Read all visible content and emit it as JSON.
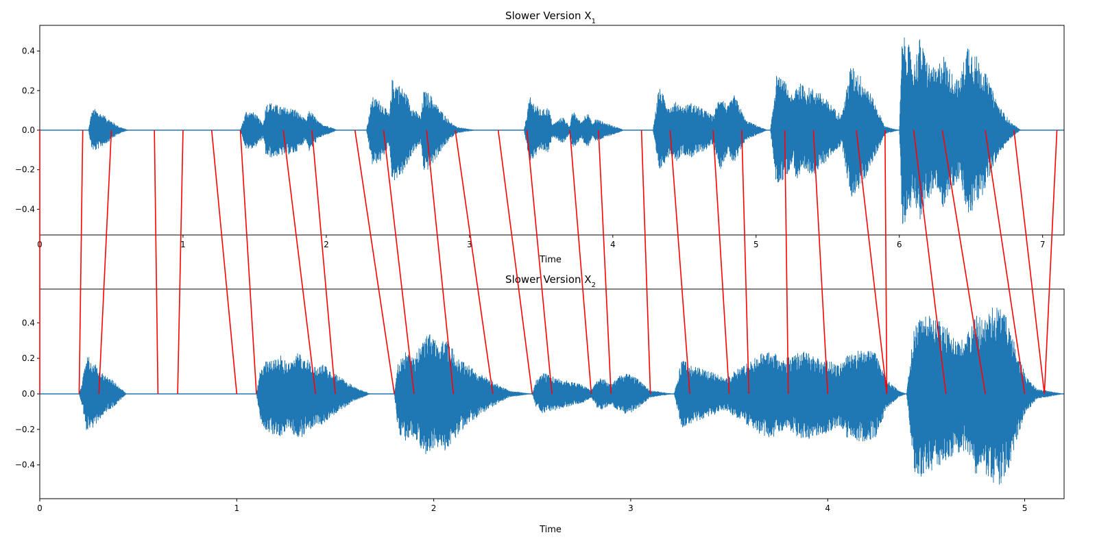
{
  "chart_data": [
    {
      "type": "line",
      "title": "Slower Version X",
      "title_subscript": "1",
      "xlabel": "Time",
      "ylabel": "",
      "xlim": [
        0,
        7.15
      ],
      "ylim": [
        -0.53,
        0.53
      ],
      "xticks": [
        0,
        1,
        2,
        3,
        4,
        5,
        6,
        7
      ],
      "yticks": [
        -0.4,
        -0.2,
        0.0,
        0.2,
        0.4
      ],
      "xtick_labels": [
        "0",
        "1",
        "2",
        "3",
        "4",
        "5",
        "6",
        "7"
      ],
      "ytick_labels": [
        "−0.4",
        "−0.2",
        "0.0",
        "0.2",
        "0.4"
      ],
      "waveform_color": "#1f77b4",
      "envelope": {
        "x": [
          0,
          0.34,
          0.36,
          0.38,
          0.42,
          0.48,
          0.55,
          0.62,
          1.4,
          1.44,
          1.5,
          1.56,
          1.58,
          1.62,
          1.68,
          1.78,
          1.86,
          1.88,
          1.9,
          1.95,
          2.05,
          2.08,
          2.28,
          2.32,
          2.38,
          2.44,
          2.46,
          2.5,
          2.55,
          2.6,
          2.66,
          2.68,
          2.72,
          2.78,
          2.86,
          2.9,
          2.96,
          3.05,
          3.38,
          3.42,
          3.5,
          3.55,
          3.58,
          3.65,
          3.7,
          3.72,
          3.78,
          3.82,
          3.86,
          3.88,
          3.94,
          4.05,
          4.08,
          4.28,
          4.32,
          4.4,
          4.45,
          4.48,
          4.55,
          4.65,
          4.7,
          4.75,
          4.8,
          4.85,
          4.93,
          5.05,
          5.08,
          5.1,
          5.14,
          5.2,
          5.26,
          5.28,
          5.35,
          5.42,
          5.5,
          5.56,
          5.6,
          5.66,
          5.72,
          5.78,
          5.84,
          5.9,
          6.0,
          6.02,
          6.06,
          6.1,
          6.14,
          6.2,
          6.26,
          6.3,
          6.36,
          6.42,
          6.48,
          6.52,
          6.58,
          6.64,
          6.7,
          6.78,
          6.85,
          7.15
        ],
        "upper": [
          0,
          0,
          0.09,
          0.11,
          0.09,
          0.06,
          0.02,
          0,
          0,
          0.1,
          0.09,
          0.03,
          0.14,
          0.14,
          0.12,
          0.11,
          0.05,
          0.1,
          0.09,
          0.04,
          0.01,
          0,
          0,
          0.17,
          0.15,
          0.08,
          0.26,
          0.24,
          0.2,
          0.12,
          0.07,
          0.2,
          0.19,
          0.12,
          0.05,
          0.02,
          0.01,
          0,
          0,
          0.17,
          0.1,
          0.12,
          0.03,
          0.07,
          0.02,
          0.1,
          0.04,
          0.1,
          0.03,
          0.06,
          0.04,
          0.01,
          0,
          0,
          0.22,
          0.12,
          0.15,
          0.12,
          0.14,
          0.1,
          0.07,
          0.19,
          0.12,
          0.18,
          0.05,
          0.01,
          0,
          0,
          0.28,
          0.25,
          0.16,
          0.25,
          0.22,
          0.21,
          0.15,
          0.1,
          0.08,
          0.33,
          0.29,
          0.22,
          0.12,
          0.02,
          0,
          0.48,
          0.45,
          0.33,
          0.47,
          0.35,
          0.3,
          0.4,
          0.3,
          0.25,
          0.46,
          0.4,
          0.33,
          0.22,
          0.12,
          0.04,
          0,
          0
        ],
        "lower": [
          0,
          0,
          -0.09,
          -0.11,
          -0.09,
          -0.06,
          -0.02,
          0,
          0,
          -0.1,
          -0.09,
          -0.04,
          -0.14,
          -0.14,
          -0.13,
          -0.12,
          -0.05,
          -0.11,
          -0.09,
          -0.04,
          -0.01,
          0,
          0,
          -0.18,
          -0.16,
          -0.08,
          -0.26,
          -0.25,
          -0.21,
          -0.12,
          -0.07,
          -0.21,
          -0.2,
          -0.13,
          -0.05,
          -0.02,
          -0.01,
          0,
          0,
          -0.17,
          -0.1,
          -0.12,
          -0.03,
          -0.07,
          -0.02,
          -0.1,
          -0.04,
          -0.1,
          -0.03,
          -0.06,
          -0.04,
          -0.01,
          0,
          0,
          -0.22,
          -0.12,
          -0.16,
          -0.12,
          -0.14,
          -0.1,
          -0.07,
          -0.2,
          -0.12,
          -0.18,
          -0.05,
          -0.01,
          0,
          0,
          -0.28,
          -0.25,
          -0.16,
          -0.26,
          -0.22,
          -0.22,
          -0.15,
          -0.1,
          -0.08,
          -0.35,
          -0.3,
          -0.22,
          -0.12,
          -0.02,
          0,
          -0.48,
          -0.45,
          -0.33,
          -0.47,
          -0.35,
          -0.3,
          -0.4,
          -0.3,
          -0.25,
          -0.46,
          -0.4,
          -0.33,
          -0.22,
          -0.12,
          -0.04,
          0,
          0
        ]
      }
    },
    {
      "type": "line",
      "title": "Slower Version X",
      "title_subscript": "2",
      "xlabel": "Time",
      "ylabel": "",
      "xlim": [
        0,
        5.2
      ],
      "ylim": [
        -0.59,
        0.59
      ],
      "xticks": [
        0,
        1,
        2,
        3,
        4,
        5
      ],
      "yticks": [
        -0.4,
        -0.2,
        0.0,
        0.2,
        0.4
      ],
      "xtick_labels": [
        "0",
        "1",
        "2",
        "3",
        "4",
        "5"
      ],
      "ytick_labels": [
        "−0.4",
        "−0.2",
        "0.0",
        "0.2",
        "0.4"
      ],
      "waveform_color": "#1f77b4",
      "envelope": {
        "x": [
          0,
          0.2,
          0.22,
          0.24,
          0.28,
          0.32,
          0.38,
          0.44,
          1.1,
          1.12,
          1.16,
          1.22,
          1.26,
          1.32,
          1.4,
          1.44,
          1.48,
          1.52,
          1.6,
          1.68,
          1.8,
          1.82,
          1.86,
          1.9,
          1.94,
          1.98,
          2.02,
          2.06,
          2.1,
          2.14,
          2.2,
          2.26,
          2.32,
          2.38,
          2.5,
          2.52,
          2.56,
          2.6,
          2.66,
          2.76,
          2.8,
          2.84,
          2.9,
          2.96,
          3.02,
          3.06,
          3.1,
          3.22,
          3.26,
          3.3,
          3.4,
          3.44,
          3.48,
          3.54,
          3.6,
          3.66,
          3.72,
          3.78,
          3.84,
          3.88,
          3.94,
          4.0,
          4.06,
          4.1,
          4.16,
          4.24,
          4.3,
          4.36,
          4.4,
          4.44,
          4.48,
          4.56,
          4.6,
          4.64,
          4.7,
          4.74,
          4.8,
          4.84,
          4.88,
          4.92,
          4.96,
          5.0,
          5.06,
          5.2
        ],
        "upper": [
          0,
          0,
          0.1,
          0.22,
          0.17,
          0.12,
          0.07,
          0,
          0,
          0.15,
          0.2,
          0.22,
          0.18,
          0.24,
          0.15,
          0.17,
          0.13,
          0.1,
          0.04,
          0,
          0,
          0.18,
          0.24,
          0.2,
          0.3,
          0.36,
          0.3,
          0.31,
          0.26,
          0.2,
          0.14,
          0.1,
          0.06,
          0.02,
          0,
          0.08,
          0.12,
          0.1,
          0.08,
          0.05,
          0.02,
          0.1,
          0.06,
          0.12,
          0.1,
          0.06,
          0.02,
          0,
          0.2,
          0.17,
          0.13,
          0.11,
          0.09,
          0.14,
          0.18,
          0.23,
          0.24,
          0.2,
          0.23,
          0.24,
          0.21,
          0.19,
          0.16,
          0.22,
          0.25,
          0.24,
          0.08,
          0.02,
          0,
          0.4,
          0.46,
          0.42,
          0.38,
          0.33,
          0.3,
          0.45,
          0.43,
          0.5,
          0.5,
          0.4,
          0.25,
          0.12,
          0.03,
          0
        ],
        "lower": [
          0,
          0,
          -0.1,
          -0.23,
          -0.18,
          -0.12,
          -0.07,
          0,
          0,
          -0.16,
          -0.22,
          -0.24,
          -0.2,
          -0.26,
          -0.17,
          -0.18,
          -0.14,
          -0.1,
          -0.04,
          0,
          0,
          -0.22,
          -0.28,
          -0.24,
          -0.32,
          -0.36,
          -0.31,
          -0.32,
          -0.27,
          -0.21,
          -0.15,
          -0.1,
          -0.06,
          -0.02,
          0,
          -0.08,
          -0.12,
          -0.1,
          -0.08,
          -0.05,
          -0.02,
          -0.1,
          -0.06,
          -0.12,
          -0.1,
          -0.06,
          -0.02,
          0,
          -0.2,
          -0.17,
          -0.13,
          -0.11,
          -0.09,
          -0.14,
          -0.18,
          -0.23,
          -0.25,
          -0.2,
          -0.24,
          -0.27,
          -0.24,
          -0.22,
          -0.18,
          -0.25,
          -0.27,
          -0.26,
          -0.08,
          -0.02,
          0,
          -0.44,
          -0.47,
          -0.42,
          -0.38,
          -0.34,
          -0.32,
          -0.46,
          -0.45,
          -0.53,
          -0.52,
          -0.42,
          -0.26,
          -0.12,
          -0.03,
          0
        ]
      }
    }
  ],
  "alignment": {
    "color": "#ff0000",
    "pairs": [
      [
        0.0,
        0.0
      ],
      [
        0.3,
        0.2
      ],
      [
        0.5,
        0.3
      ],
      [
        0.8,
        0.6
      ],
      [
        1.0,
        0.7
      ],
      [
        1.2,
        1.0
      ],
      [
        1.4,
        1.1
      ],
      [
        1.7,
        1.4
      ],
      [
        1.9,
        1.5
      ],
      [
        2.2,
        1.8
      ],
      [
        2.4,
        1.9
      ],
      [
        2.7,
        2.1
      ],
      [
        2.9,
        2.3
      ],
      [
        3.2,
        2.5
      ],
      [
        3.4,
        2.6
      ],
      [
        3.7,
        2.8
      ],
      [
        3.9,
        2.9
      ],
      [
        4.2,
        3.1
      ],
      [
        4.4,
        3.3
      ],
      [
        4.7,
        3.5
      ],
      [
        4.9,
        3.6
      ],
      [
        5.2,
        3.8
      ],
      [
        5.4,
        4.0
      ],
      [
        5.7,
        4.3
      ],
      [
        5.9,
        4.3
      ],
      [
        6.1,
        4.6
      ],
      [
        6.3,
        4.8
      ],
      [
        6.6,
        5.0
      ],
      [
        6.8,
        5.1
      ],
      [
        7.1,
        5.1
      ]
    ]
  }
}
